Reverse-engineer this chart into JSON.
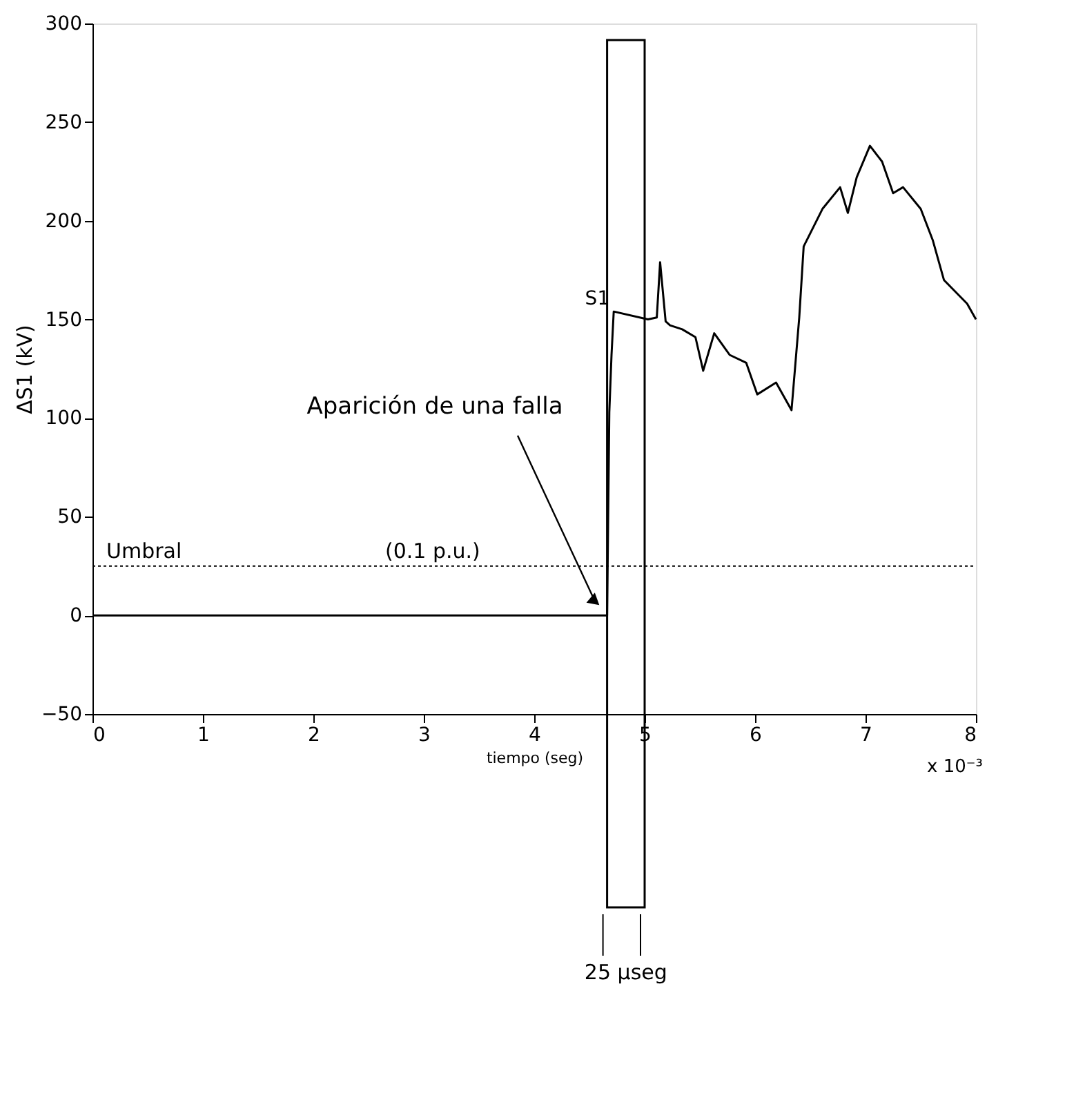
{
  "chart_data": {
    "type": "line",
    "xlabel": "tiempo (seg)",
    "ylabel": "ΔS1 (kV)",
    "xlim": [
      0,
      8
    ],
    "xticks": [
      0,
      1,
      2,
      3,
      4,
      5,
      6,
      7,
      8
    ],
    "ylim": [
      -50,
      300
    ],
    "yticks": [
      -50,
      0,
      50,
      100,
      150,
      200,
      250,
      300
    ],
    "grid": false,
    "line_style": "solid",
    "series": [
      {
        "name": "S1",
        "color": "#000000",
        "x": [
          0,
          4.66,
          4.68,
          4.7,
          4.72,
          5.03,
          5.11,
          5.14,
          5.19,
          5.23,
          5.34,
          5.46,
          5.53,
          5.63,
          5.77,
          5.92,
          6.02,
          6.19,
          6.33,
          6.4,
          6.44,
          6.61,
          6.77,
          6.84,
          6.92,
          7.04,
          7.15,
          7.25,
          7.34,
          7.5,
          7.61,
          7.71,
          7.92,
          8.0
        ],
        "values": [
          0,
          0,
          103,
          132,
          154,
          150,
          151,
          179,
          149,
          147,
          145,
          141,
          124,
          143,
          132,
          128,
          112,
          118,
          104,
          151,
          187,
          206,
          217,
          204,
          222,
          238,
          230,
          214,
          217,
          206,
          190,
          170,
          158,
          150
        ]
      }
    ],
    "ref_lines": [
      {
        "axis": "y",
        "value": 25,
        "label": "Umbral",
        "line_style": "dotted",
        "color": "#000000"
      }
    ],
    "bands": [
      {
        "axis": "x",
        "from": 4.66,
        "to": 5.0,
        "label": "25 µseg"
      }
    ],
    "annotations": [
      {
        "text": "Aparición de una falla",
        "x": 4.6,
        "y": 5
      },
      {
        "text": "(0.1 p.u.)",
        "x": 2.65,
        "y": 25
      },
      "x 10⁻³"
    ]
  }
}
